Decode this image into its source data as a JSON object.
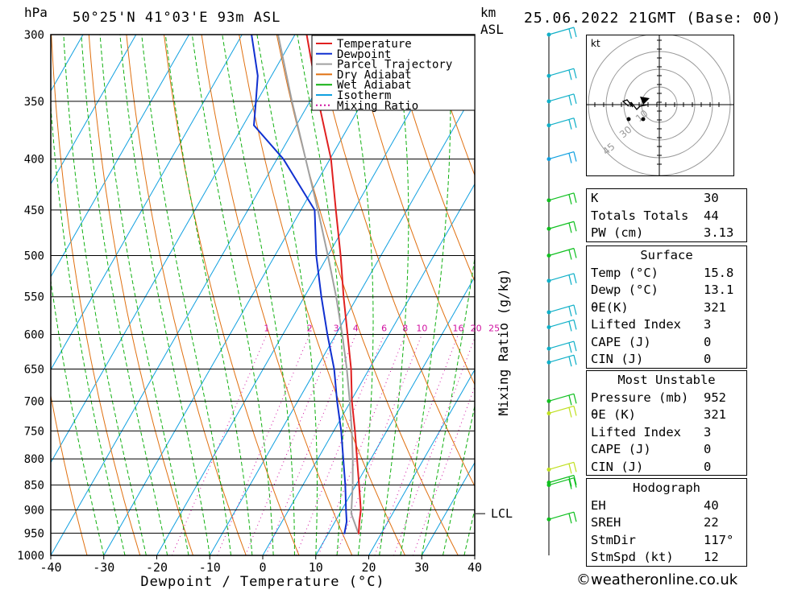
{
  "header": {
    "left_unit": "hPa",
    "location": "50°25'N  41°03'E  93m  ASL",
    "km_label": "km",
    "asl_label": "ASL",
    "datetime": "25.06.2022  21GMT  (Base: 00)"
  },
  "chart_data": {
    "type": "skew-t",
    "xlabel": "Dewpoint / Temperature (°C)",
    "ylabel": "Mixing Ratio (g/kg)",
    "x_ticks": [
      -40,
      -30,
      -20,
      -10,
      0,
      10,
      20,
      30,
      40
    ],
    "xlim": [
      -40,
      40
    ],
    "pressure_levels": [
      300,
      350,
      400,
      450,
      500,
      550,
      600,
      650,
      700,
      750,
      800,
      850,
      900,
      950,
      1000
    ],
    "pressure_range": [
      300,
      1000
    ],
    "mixing_ratio_labels": [
      "1",
      "2",
      "3",
      "4",
      "6",
      "8",
      "10",
      "16",
      "20",
      "25"
    ],
    "mixing_ratio_values": [
      1,
      2,
      3,
      4,
      6,
      8,
      10,
      16,
      20,
      25
    ],
    "lcl_label": "LCL",
    "lcl_pressure": 908,
    "legend": [
      {
        "name": "Temperature",
        "color": "#e02020"
      },
      {
        "name": "Dewpoint",
        "color": "#1030d0"
      },
      {
        "name": "Parcel Trajectory",
        "color": "#a0a0a0"
      },
      {
        "name": "Dry Adiabat",
        "color": "#e07010"
      },
      {
        "name": "Wet Adiabat",
        "color": "#10b010"
      },
      {
        "name": "Isotherm",
        "color": "#10a0e0"
      },
      {
        "name": "Mixing Ratio",
        "color": "#d010a0"
      }
    ],
    "temperature_profile": {
      "pressure": [
        952,
        925,
        900,
        850,
        800,
        750,
        700,
        650,
        600,
        550,
        500,
        450,
        400,
        350,
        300
      ],
      "temp": [
        15.8,
        14.6,
        13.6,
        10.6,
        7.4,
        4.0,
        0.2,
        -3.4,
        -7.8,
        -12.6,
        -17.6,
        -23.4,
        -29.8,
        -38.4,
        -47.8
      ]
    },
    "dewpoint_profile": {
      "pressure": [
        952,
        925,
        900,
        850,
        800,
        750,
        700,
        650,
        600,
        550,
        500,
        450,
        430,
        400,
        370,
        350,
        330,
        300
      ],
      "dewp": [
        13.1,
        12.2,
        10.8,
        8.0,
        4.8,
        1.4,
        -2.6,
        -6.6,
        -11.6,
        -16.8,
        -22.2,
        -27.4,
        -31.8,
        -38.8,
        -48.0,
        -50.2,
        -52.6,
        -58.2
      ]
    },
    "parcel_profile": {
      "pressure": [
        952,
        908,
        850,
        800,
        750,
        700,
        650,
        600,
        550,
        500,
        450,
        400,
        350,
        300
      ],
      "temp": [
        15.8,
        12.2,
        9.4,
        6.6,
        3.4,
        -0.2,
        -4.2,
        -8.8,
        -14.0,
        -20.0,
        -26.8,
        -34.6,
        -43.4,
        -53.2
      ]
    },
    "wind_barbs": [
      {
        "pressure": 300,
        "color": "#10b0c8"
      },
      {
        "pressure": 330,
        "color": "#10b0c8"
      },
      {
        "pressure": 350,
        "color": "#10b0c8"
      },
      {
        "pressure": 370,
        "color": "#10b0c8"
      },
      {
        "pressure": 400,
        "color": "#10a0e0"
      },
      {
        "pressure": 440,
        "color": "#10c020"
      },
      {
        "pressure": 470,
        "color": "#10c020"
      },
      {
        "pressure": 500,
        "color": "#10c020"
      },
      {
        "pressure": 530,
        "color": "#10b0c8"
      },
      {
        "pressure": 570,
        "color": "#10b0c8"
      },
      {
        "pressure": 590,
        "color": "#10b0c8"
      },
      {
        "pressure": 620,
        "color": "#10b0c8"
      },
      {
        "pressure": 640,
        "color": "#10b0c8"
      },
      {
        "pressure": 700,
        "color": "#10c020"
      },
      {
        "pressure": 720,
        "color": "#c0e020"
      },
      {
        "pressure": 820,
        "color": "#c0e020"
      },
      {
        "pressure": 845,
        "color": "#10c020"
      },
      {
        "pressure": 850,
        "color": "#10c020"
      },
      {
        "pressure": 920,
        "color": "#10c020"
      }
    ]
  },
  "hodograph": {
    "unit_label": "kt",
    "ring_labels": [
      "10",
      "30",
      "45"
    ]
  },
  "indices": {
    "general": [
      {
        "label": "K",
        "value": "30"
      },
      {
        "label": "Totals Totals",
        "value": "44"
      },
      {
        "label": "PW (cm)",
        "value": "3.13"
      }
    ],
    "surface": {
      "title": "Surface",
      "rows": [
        {
          "label": "Temp (°C)",
          "value": "15.8"
        },
        {
          "label": "Dewp (°C)",
          "value": "13.1"
        },
        {
          "label": "θE(K)",
          "value": "321"
        },
        {
          "label": "Lifted Index",
          "value": "3"
        },
        {
          "label": "CAPE (J)",
          "value": "0"
        },
        {
          "label": "CIN (J)",
          "value": "0"
        }
      ]
    },
    "most_unstable": {
      "title": "Most Unstable",
      "rows": [
        {
          "label": "Pressure (mb)",
          "value": "952"
        },
        {
          "label": "θE (K)",
          "value": "321"
        },
        {
          "label": "Lifted Index",
          "value": "3"
        },
        {
          "label": "CAPE (J)",
          "value": "0"
        },
        {
          "label": "CIN (J)",
          "value": "0"
        }
      ]
    },
    "hodograph": {
      "title": "Hodograph",
      "rows": [
        {
          "label": "EH",
          "value": "40"
        },
        {
          "label": "SREH",
          "value": "22"
        },
        {
          "label": "StmDir",
          "value": "117°"
        },
        {
          "label": "StmSpd (kt)",
          "value": "12"
        }
      ]
    }
  },
  "footer": {
    "credit": "©weatheronline.co.uk"
  }
}
